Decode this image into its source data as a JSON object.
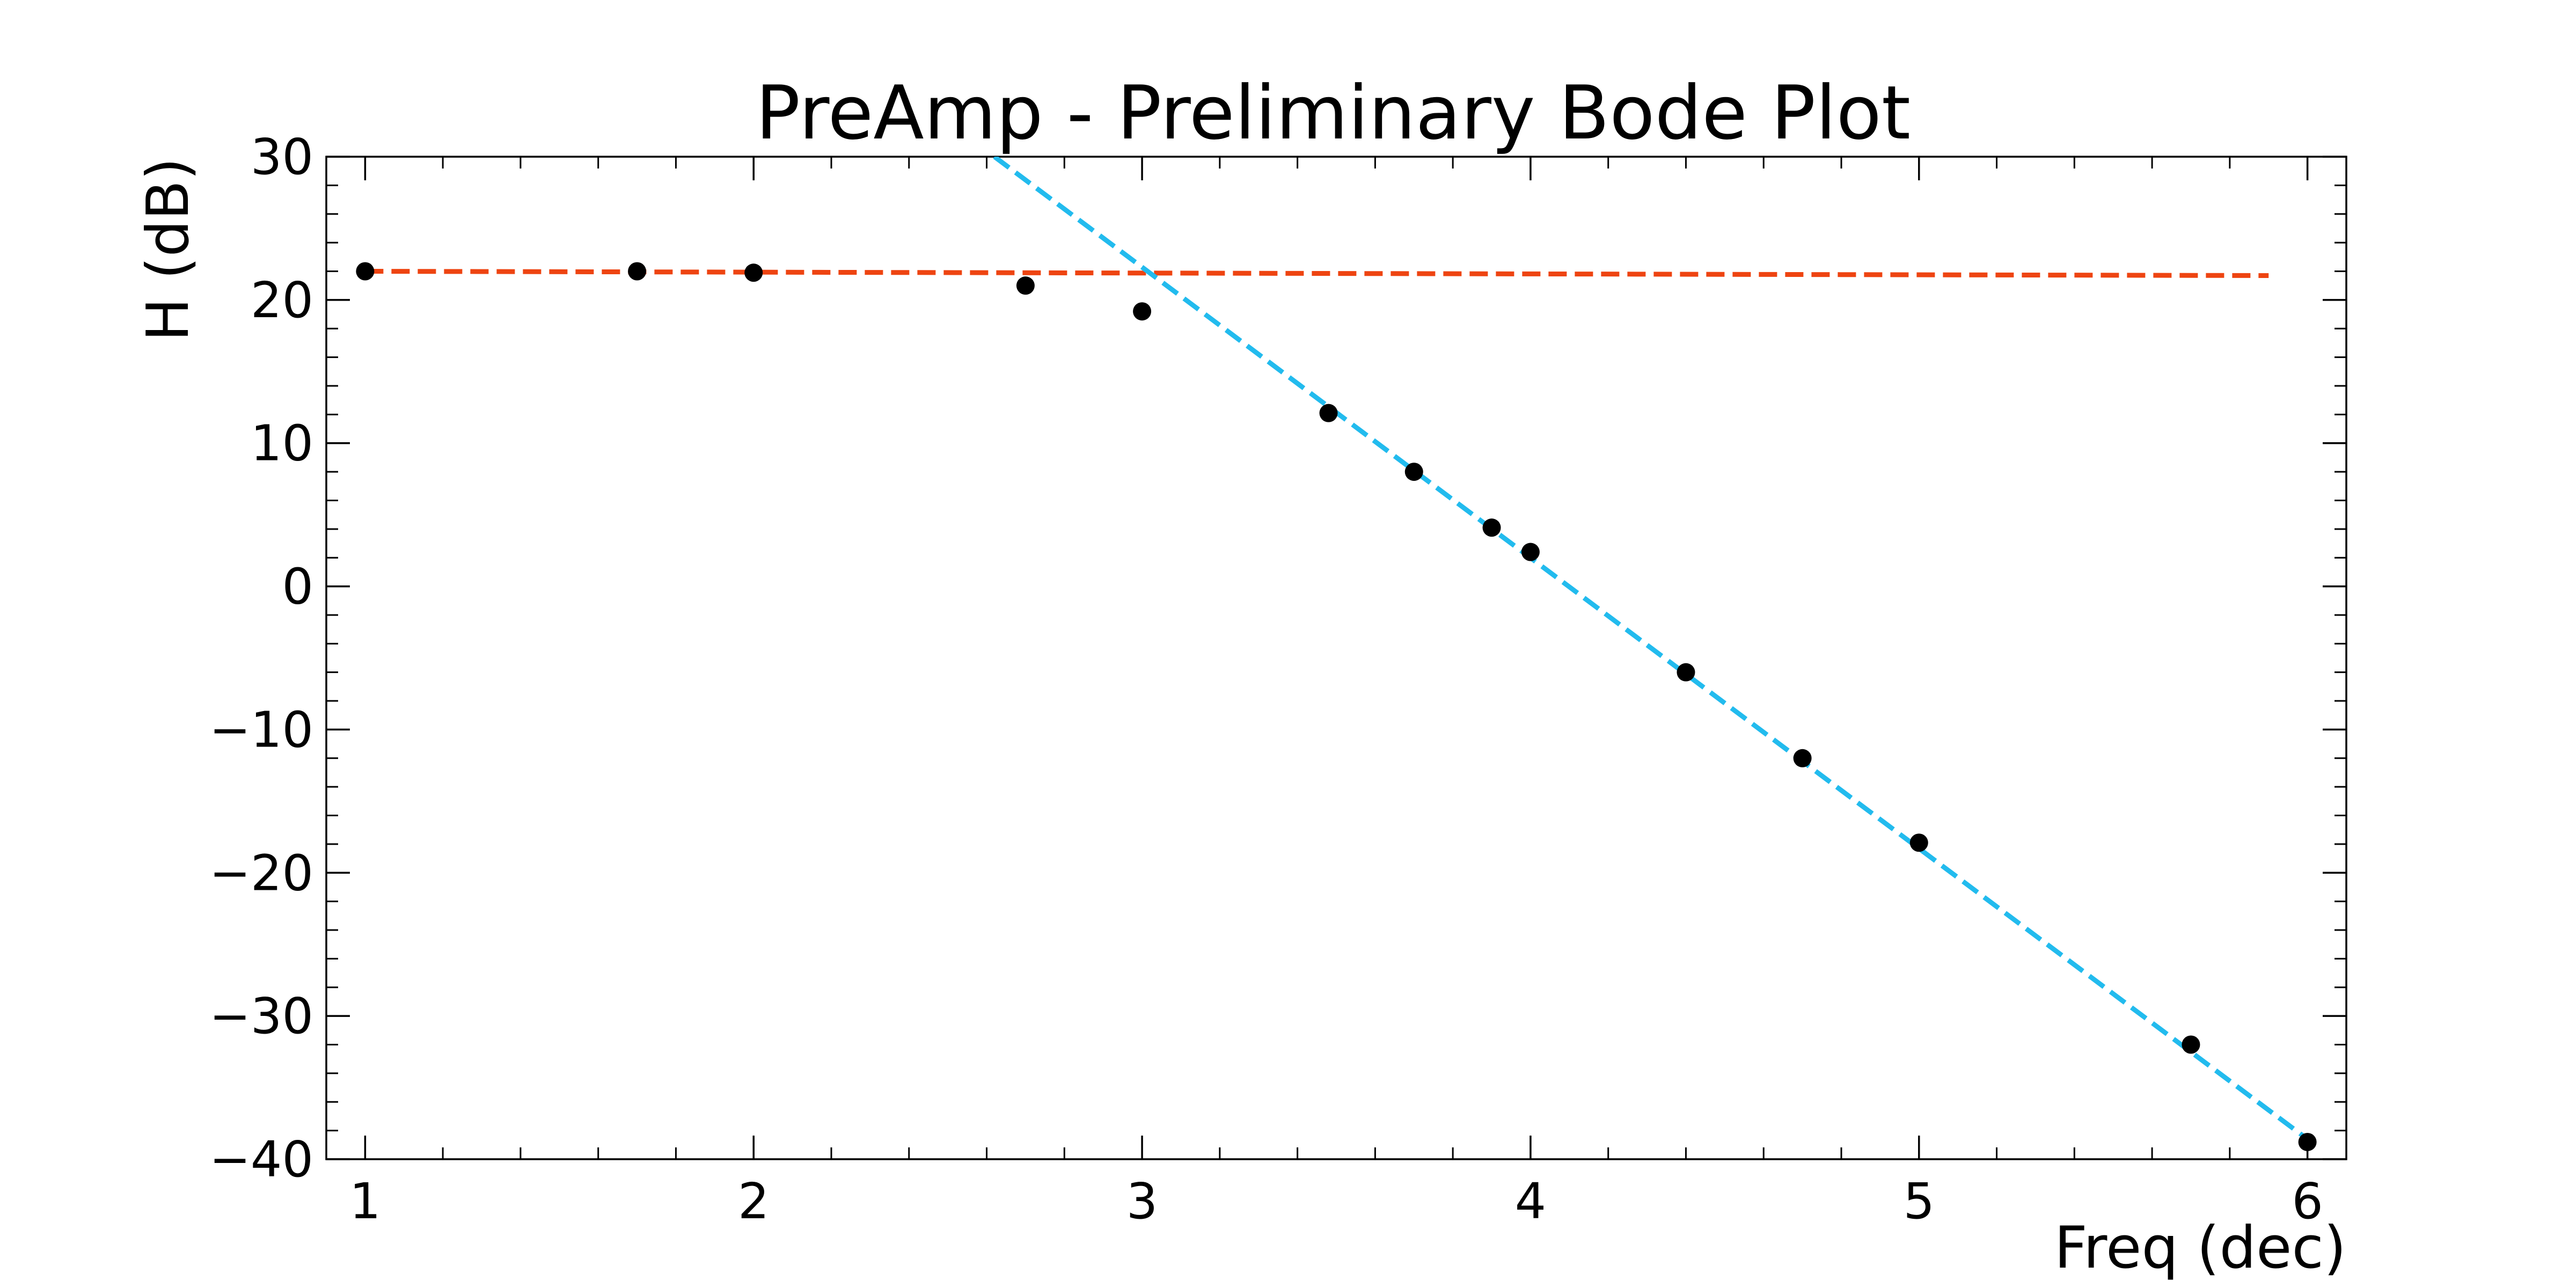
{
  "chart_data": {
    "type": "scatter",
    "title": "PreAmp - Preliminary Bode Plot",
    "xlabel": "Freq (dec)",
    "ylabel": "H (dB)",
    "xlim": [
      0.9,
      6.1
    ],
    "ylim": [
      -40,
      30
    ],
    "x_ticks": [
      1,
      2,
      3,
      4,
      5,
      6
    ],
    "y_ticks": [
      -40,
      -30,
      -20,
      -10,
      0,
      10,
      20,
      30
    ],
    "x_tick_labels": [
      "1",
      "2",
      "3",
      "4",
      "5",
      "6"
    ],
    "y_tick_labels": [
      "−40",
      "−30",
      "−20",
      "−10",
      "0",
      "10",
      "20",
      "30"
    ],
    "grid": false,
    "points": {
      "color": "#000000",
      "x": [
        1.0,
        1.7,
        2.0,
        2.7,
        3.0,
        3.48,
        3.7,
        3.9,
        4.0,
        4.4,
        4.7,
        5.0,
        5.7,
        6.0
      ],
      "y": [
        22.0,
        22.0,
        21.9,
        21.0,
        19.2,
        12.1,
        8.0,
        4.1,
        2.4,
        -6.0,
        -12.0,
        -17.9,
        -32.0,
        -38.8
      ]
    },
    "fit_lines": [
      {
        "color": "#EE4411",
        "style": "dashed",
        "x": [
          1.0,
          5.9
        ],
        "y": [
          22.0,
          21.7
        ]
      },
      {
        "color": "#22BBEE",
        "style": "dashed",
        "x": [
          2.62,
          6.0
        ],
        "y": [
          30.0,
          -38.6
        ]
      }
    ]
  }
}
